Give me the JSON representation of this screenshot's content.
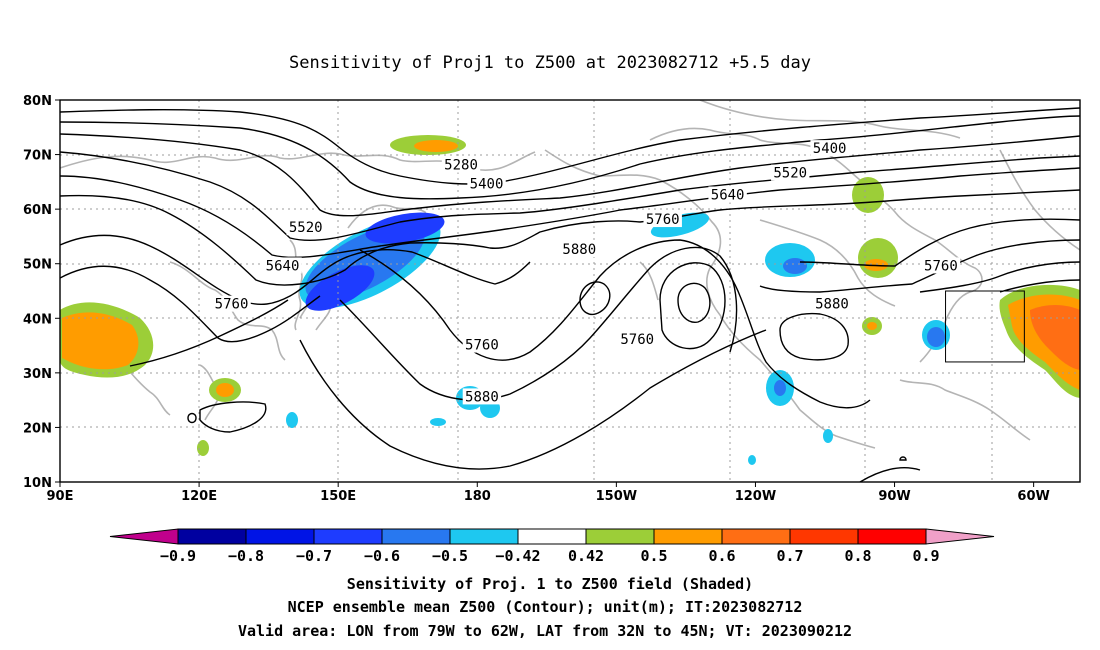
{
  "map": {
    "title": "Sensitivity of Proj1 to Z500 at 2023082712 +5.5 day",
    "extent": {
      "lon_min": 90,
      "lon_max": 310,
      "lat_min": 10,
      "lat_max": 80
    },
    "lon_ticks": [
      {
        "lon": 90,
        "label": "90E"
      },
      {
        "lon": 120,
        "label": "120E"
      },
      {
        "lon": 150,
        "label": "150E"
      },
      {
        "lon": 180,
        "label": "180"
      },
      {
        "lon": 210,
        "label": "150W"
      },
      {
        "lon": 240,
        "label": "120W"
      },
      {
        "lon": 270,
        "label": "90W"
      },
      {
        "lon": 300,
        "label": "60W"
      }
    ],
    "lat_ticks": [
      {
        "lat": 80,
        "label": "80N"
      },
      {
        "lat": 70,
        "label": "70N"
      },
      {
        "lat": 60,
        "label": "60N"
      },
      {
        "lat": 50,
        "label": "50N"
      },
      {
        "lat": 40,
        "label": "40N"
      },
      {
        "lat": 30,
        "label": "30N"
      },
      {
        "lat": 20,
        "label": "20N"
      },
      {
        "lat": 10,
        "label": "10N"
      }
    ],
    "gridlines": "dotted",
    "contour_labels": [
      {
        "text": "5280",
        "lon": 176.5,
        "lat": 68
      },
      {
        "text": "5400",
        "lon": 182,
        "lat": 64.5
      },
      {
        "text": "5520",
        "lon": 143,
        "lat": 56.5
      },
      {
        "text": "5640",
        "lon": 138,
        "lat": 49.5
      },
      {
        "text": "5760",
        "lon": 127,
        "lat": 42.5
      },
      {
        "text": "5400",
        "lon": 256,
        "lat": 71
      },
      {
        "text": "5520",
        "lon": 247.5,
        "lat": 66.5
      },
      {
        "text": "5640",
        "lon": 234,
        "lat": 62.5
      },
      {
        "text": "5760",
        "lon": 220,
        "lat": 58
      },
      {
        "text": "5880",
        "lon": 202,
        "lat": 52.5
      },
      {
        "text": "5760",
        "lon": 280,
        "lat": 49.5
      },
      {
        "text": "5880",
        "lon": 256.5,
        "lat": 42.5
      },
      {
        "text": "5760",
        "lon": 181,
        "lat": 35
      },
      {
        "text": "5760",
        "lon": 214.5,
        "lat": 36
      },
      {
        "text": "5880",
        "lon": 181,
        "lat": 25.5
      }
    ],
    "valid_area": {
      "lon_min": -79,
      "lon_max": -62,
      "lat_min": 32,
      "lat_max": 45
    }
  },
  "colorbar": {
    "labels": [
      "−0.9",
      "−0.8",
      "−0.7",
      "−0.6",
      "−0.5",
      "−0.42",
      "0.42",
      "0.5",
      "0.6",
      "0.7",
      "0.8",
      "0.9"
    ],
    "colors": [
      "#c0008c",
      "#0000a0",
      "#0014e6",
      "#1e3cff",
      "#2878f0",
      "#1ec8f0",
      "#ffffff",
      "#9cce38",
      "#ff9c00",
      "#ff6e14",
      "#ff3700",
      "#ff0000",
      "#f0a0c8"
    ]
  },
  "caption": {
    "line1": "Sensitivity of Proj. 1 to Z500 field (Shaded)",
    "line2": "NCEP ensemble mean Z500 (Contour); unit(m); IT:2023082712",
    "line3": "Valid area: LON from 79W to 62W, LAT from 32N to 45N; VT: 2023090212"
  }
}
